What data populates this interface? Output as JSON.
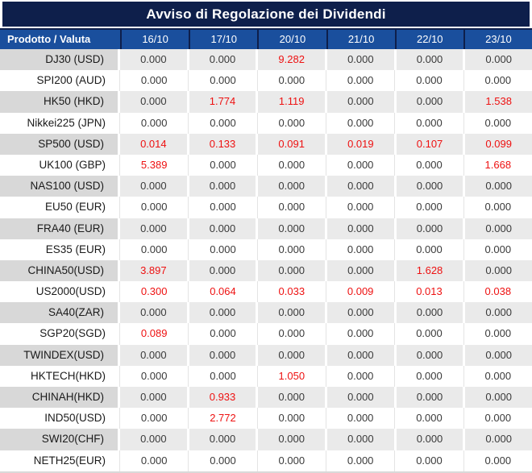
{
  "window": {
    "title": "Avviso di Regolazione dei Dividendi"
  },
  "colors": {
    "title_bg": "#0e1f4b",
    "header_bg": "#1a4f9d",
    "header_border": "#0e1f4b",
    "alt_row_product_bg": "#d8d8d8",
    "alt_row_value_bg": "#eaeaea",
    "value_text": "#3a3a3a",
    "nonzero_value_text": "#ee1111"
  },
  "table": {
    "product_column_header": "Prodotto / Valuta",
    "date_column_headers": [
      "16/10",
      "17/10",
      "20/10",
      "21/10",
      "22/10",
      "23/10"
    ],
    "zero_value": "0.000",
    "rows": [
      {
        "product": "DJ30 (USD)",
        "values": [
          "0.000",
          "0.000",
          "9.282",
          "0.000",
          "0.000",
          "0.000"
        ]
      },
      {
        "product": "SPI200 (AUD)",
        "values": [
          "0.000",
          "0.000",
          "0.000",
          "0.000",
          "0.000",
          "0.000"
        ]
      },
      {
        "product": "HK50 (HKD)",
        "values": [
          "0.000",
          "1.774",
          "1.119",
          "0.000",
          "0.000",
          "1.538"
        ]
      },
      {
        "product": "Nikkei225 (JPN)",
        "values": [
          "0.000",
          "0.000",
          "0.000",
          "0.000",
          "0.000",
          "0.000"
        ]
      },
      {
        "product": "SP500 (USD)",
        "values": [
          "0.014",
          "0.133",
          "0.091",
          "0.019",
          "0.107",
          "0.099"
        ]
      },
      {
        "product": "UK100 (GBP)",
        "values": [
          "5.389",
          "0.000",
          "0.000",
          "0.000",
          "0.000",
          "1.668"
        ]
      },
      {
        "product": "NAS100 (USD)",
        "values": [
          "0.000",
          "0.000",
          "0.000",
          "0.000",
          "0.000",
          "0.000"
        ]
      },
      {
        "product": "EU50 (EUR)",
        "values": [
          "0.000",
          "0.000",
          "0.000",
          "0.000",
          "0.000",
          "0.000"
        ]
      },
      {
        "product": "FRA40 (EUR)",
        "values": [
          "0.000",
          "0.000",
          "0.000",
          "0.000",
          "0.000",
          "0.000"
        ]
      },
      {
        "product": "ES35 (EUR)",
        "values": [
          "0.000",
          "0.000",
          "0.000",
          "0.000",
          "0.000",
          "0.000"
        ]
      },
      {
        "product": "CHINA50(USD)",
        "values": [
          "3.897",
          "0.000",
          "0.000",
          "0.000",
          "1.628",
          "0.000"
        ]
      },
      {
        "product": "US2000(USD)",
        "values": [
          "0.300",
          "0.064",
          "0.033",
          "0.009",
          "0.013",
          "0.038"
        ]
      },
      {
        "product": "SA40(ZAR)",
        "values": [
          "0.000",
          "0.000",
          "0.000",
          "0.000",
          "0.000",
          "0.000"
        ]
      },
      {
        "product": "SGP20(SGD)",
        "values": [
          "0.089",
          "0.000",
          "0.000",
          "0.000",
          "0.000",
          "0.000"
        ]
      },
      {
        "product": "TWINDEX(USD)",
        "values": [
          "0.000",
          "0.000",
          "0.000",
          "0.000",
          "0.000",
          "0.000"
        ]
      },
      {
        "product": "HKTECH(HKD)",
        "values": [
          "0.000",
          "0.000",
          "1.050",
          "0.000",
          "0.000",
          "0.000"
        ]
      },
      {
        "product": "CHINAH(HKD)",
        "values": [
          "0.000",
          "0.933",
          "0.000",
          "0.000",
          "0.000",
          "0.000"
        ]
      },
      {
        "product": "IND50(USD)",
        "values": [
          "0.000",
          "2.772",
          "0.000",
          "0.000",
          "0.000",
          "0.000"
        ]
      },
      {
        "product": "SWI20(CHF)",
        "values": [
          "0.000",
          "0.000",
          "0.000",
          "0.000",
          "0.000",
          "0.000"
        ]
      },
      {
        "product": "NETH25(EUR)",
        "values": [
          "0.000",
          "0.000",
          "0.000",
          "0.000",
          "0.000",
          "0.000"
        ]
      }
    ]
  }
}
